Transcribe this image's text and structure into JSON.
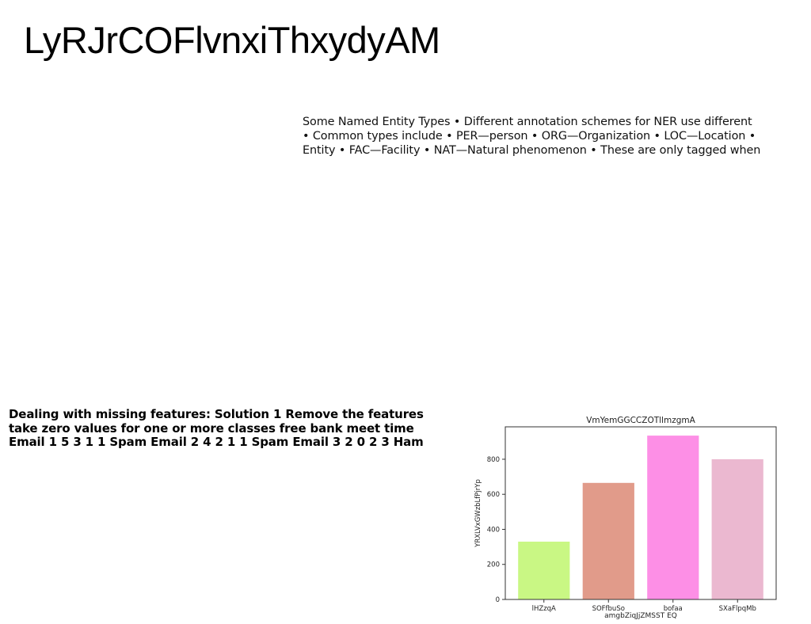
{
  "title": "LyRJrCOFlvnxiThxydyAM",
  "ner_text": {
    "lines": [
      "Some Named Entity Types • Different annotation schemes for NER use different",
      "• Common types include • PER—person • ORG—Organization • LOC—Location •",
      "Entity • FAC—Facility • NAT—Natural phenomenon • These are only tagged when"
    ]
  },
  "missing_text": {
    "lines": [
      "Dealing with missing features: Solution 1 Remove the features",
      "take zero values for one or more classes free bank meet time",
      "Email 1 5 3 1 1 Spam Email 2 4 2 1 1 Spam Email 3 2 0 2 3 Ham"
    ]
  },
  "chart_data": {
    "type": "bar",
    "title": "VmYemGGCCZOTllmzgmA",
    "xlabel": "amgbZiqJjZMSST EQ",
    "ylabel": "YRXLVxGWzbLfPjrYp",
    "categories": [
      "lHZzqA",
      "SOFfbuSo",
      "bofaa",
      "SXaFlpqMb"
    ],
    "values": [
      330,
      665,
      935,
      800
    ],
    "colors": [
      "#c9f784",
      "#e19b8a",
      "#fd8fe6",
      "#ebb8d0"
    ],
    "ylim": [
      0,
      985
    ],
    "yticks": [
      0,
      200,
      400,
      600,
      800
    ],
    "grid": false
  }
}
